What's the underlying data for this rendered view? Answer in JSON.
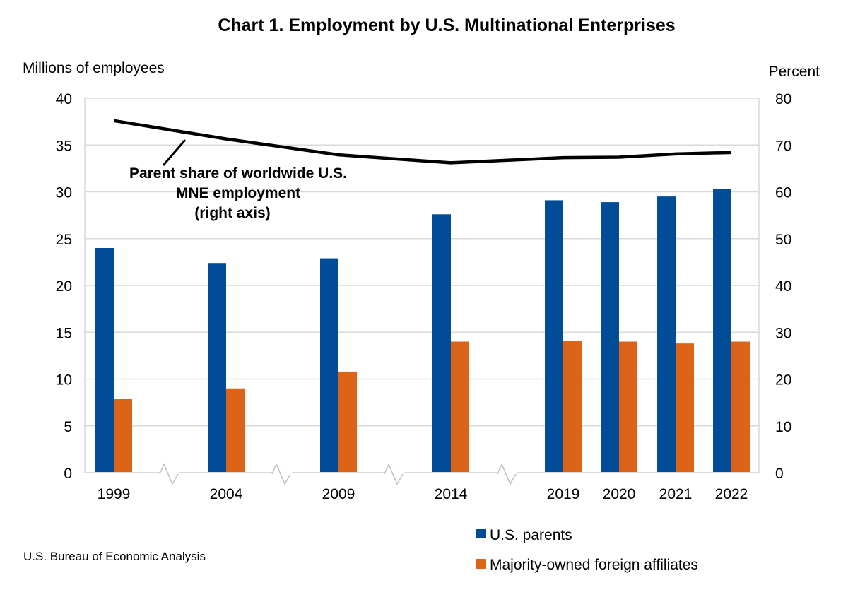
{
  "chart_data": {
    "type": "bar",
    "title": "Chart 1. Employment by U.S. Multinational Enterprises",
    "y_left_label": "Millions of employees",
    "y_right_label": "Percent",
    "ylim_left": [
      0,
      40
    ],
    "ylim_right": [
      0,
      80
    ],
    "y_left_ticks": [
      0,
      5,
      10,
      15,
      20,
      25,
      30,
      35,
      40
    ],
    "y_right_ticks": [
      0,
      10,
      20,
      30,
      40,
      50,
      60,
      70,
      80
    ],
    "grid": true,
    "categories": [
      "1999",
      "2004",
      "2009",
      "2014",
      "2019",
      "2020",
      "2021",
      "2022"
    ],
    "axis_breaks_after": [
      "1999",
      "2004",
      "2009",
      "2014"
    ],
    "series": [
      {
        "name": "U.S. parents",
        "axis": "left",
        "type": "bar",
        "color": "#004C97",
        "values": [
          24.0,
          22.4,
          22.9,
          27.6,
          29.1,
          28.9,
          29.5,
          30.3
        ]
      },
      {
        "name": "Majority-owned foreign affiliates",
        "axis": "left",
        "type": "bar",
        "color": "#DC6418",
        "values": [
          7.9,
          9.0,
          10.8,
          14.0,
          14.1,
          14.0,
          13.8,
          14.0
        ]
      },
      {
        "name": "Parent share of worldwide U.S. MNE employment",
        "axis": "right",
        "type": "line",
        "color": "#000000",
        "values": [
          75.2,
          71.3,
          67.9,
          66.2,
          67.3,
          67.4,
          68.1,
          68.4
        ]
      }
    ],
    "annotation": {
      "lines": [
        "Parent share of worldwide U.S.",
        "MNE employment",
        "(right axis)"
      ]
    },
    "legend": {
      "placement": "bottom-right",
      "items": [
        "U.S. parents",
        "Majority-owned foreign affiliates"
      ]
    }
  },
  "source": "U.S. Bureau of Economic Analysis"
}
